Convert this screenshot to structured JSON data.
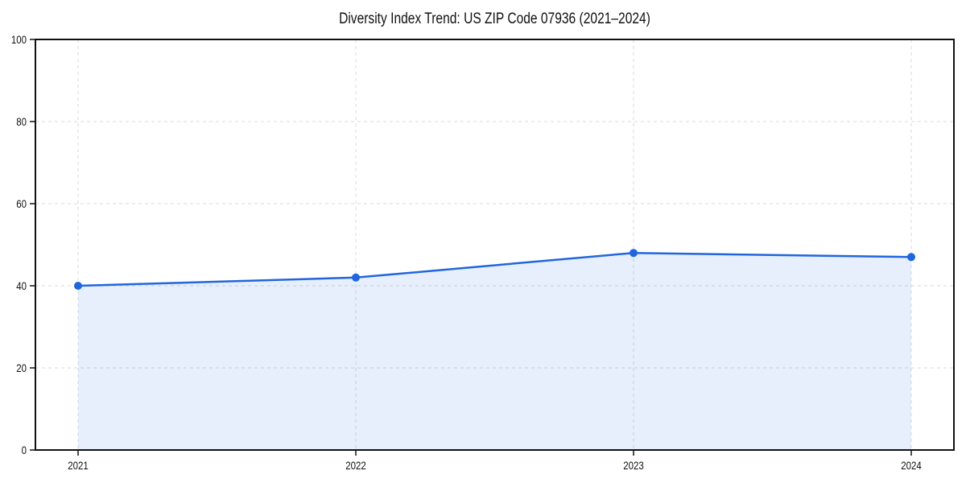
{
  "chart_data": {
    "type": "line",
    "title": "Diversity Index Trend: US ZIP Code 07936 (2021–2024)",
    "x_categories": [
      "2021",
      "2022",
      "2023",
      "2024"
    ],
    "series": [
      {
        "name": "Diversity Index",
        "values": [
          40,
          42,
          48,
          47
        ]
      }
    ],
    "xlabel": "",
    "ylabel": "",
    "ylim": [
      0,
      100
    ],
    "yticks": [
      0,
      20,
      40,
      60,
      80,
      100
    ],
    "grid": "dashed",
    "legend": "none",
    "marker": "circle",
    "area_fill": true,
    "colors": {
      "line": "#2066dd",
      "marker": "#2066dd",
      "area_fill_opacity": 0.1,
      "grid": "#d9d9d9",
      "axis": "#111111",
      "text": "#111111",
      "background": "#ffffff"
    }
  }
}
